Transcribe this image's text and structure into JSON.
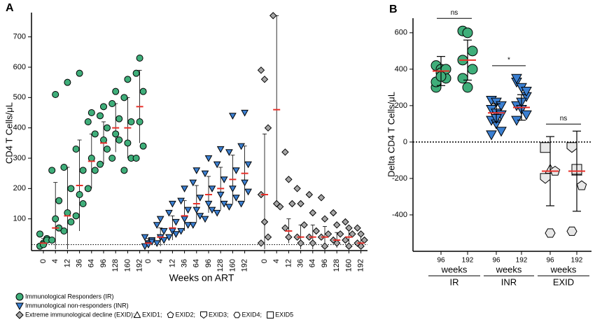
{
  "chart_data": [
    {
      "type": "strip",
      "panel_label": "A",
      "ylabel": "CD4 T Cells/μL",
      "xlabel": "Weeks on ART",
      "ylim": [
        0,
        780
      ],
      "yticks": [
        100,
        200,
        300,
        400,
        500,
        600,
        700
      ],
      "reference_line": 15,
      "groups": [
        {
          "name": "Immunological Responders (IR)",
          "color": "#3fae7a",
          "marker": "circle",
          "categories": [
            "0",
            "4",
            "12",
            "36",
            "64",
            "96",
            "128",
            "160",
            "192"
          ],
          "values": [
            [
              10,
              20,
              35,
              50,
              15,
              30
            ],
            [
              30,
              100,
              160,
              260,
              510,
              70
            ],
            [
              60,
              120,
              200,
              270,
              550,
              90
            ],
            [
              110,
              180,
              260,
              330,
              580,
              150
            ],
            [
              200,
              300,
              380,
              420,
              450,
              260
            ],
            [
              280,
              360,
              400,
              440,
              470,
              330
            ],
            [
              300,
              380,
              430,
              480,
              520,
              360
            ],
            [
              260,
              350,
              420,
              500,
              560,
              300
            ],
            [
              300,
              420,
              520,
              580,
              630,
              340
            ]
          ],
          "means": [
            20,
            70,
            110,
            210,
            290,
            350,
            400,
            400,
            470
          ],
          "sd": [
            15,
            150,
            160,
            150,
            90,
            70,
            80,
            100,
            120
          ]
        },
        {
          "name": "Immunological non-responders (INR)",
          "color": "#3b7fd1",
          "marker": "triangle-down",
          "categories": [
            "0",
            "4",
            "12",
            "36",
            "64",
            "96",
            "128",
            "160",
            "192"
          ],
          "values": [
            [
              10,
              20,
              30,
              40,
              15,
              25
            ],
            [
              20,
              40,
              60,
              80,
              100,
              30
            ],
            [
              40,
              60,
              90,
              120,
              150,
              50
            ],
            [
              60,
              100,
              130,
              160,
              200,
              80
            ],
            [
              80,
              130,
              170,
              220,
              260,
              110
            ],
            [
              100,
              150,
              200,
              250,
              300,
              130
            ],
            [
              120,
              180,
              230,
              280,
              330,
              150
            ],
            [
              140,
              200,
              260,
              320,
              440,
              170
            ],
            [
              150,
              220,
              280,
              340,
              450,
              190
            ]
          ],
          "means": [
            20,
            40,
            70,
            110,
            150,
            180,
            200,
            230,
            250
          ],
          "sd": [
            15,
            30,
            40,
            50,
            60,
            60,
            70,
            80,
            90
          ]
        },
        {
          "name": "Extreme immunological decline (EXID):",
          "color": "#a6a6a6",
          "marker": "diamond",
          "categories": [
            "0",
            "4",
            "12",
            "36",
            "64",
            "96",
            "128",
            "160",
            "192"
          ],
          "values": [
            [
              590,
              560,
              400,
              180,
              90,
              40,
              20
            ],
            [
              770,
              150,
              140
            ],
            [
              320,
              230,
              150,
              70,
              40
            ],
            [
              200,
              150,
              80,
              40,
              20
            ],
            [
              180,
              120,
              60,
              40,
              20
            ],
            [
              170,
              100,
              50,
              40,
              10
            ],
            [
              120,
              80,
              50,
              30,
              20
            ],
            [
              90,
              70,
              50,
              30,
              10
            ],
            [
              70,
              50,
              30,
              20,
              10
            ]
          ],
          "means": [
            180,
            460,
            60,
            40,
            40,
            40,
            30,
            40,
            20
          ],
          "sd": [
            200,
            310,
            40,
            40,
            40,
            35,
            25,
            30,
            25
          ]
        }
      ],
      "legend_sub": [
        {
          "label": "EXID1;",
          "marker": "triangle"
        },
        {
          "label": "EXID2;",
          "marker": "pentagon"
        },
        {
          "label": "EXID3;",
          "marker": "shield"
        },
        {
          "label": "EXID4;",
          "marker": "hexagon"
        },
        {
          "label": "EXID5",
          "marker": "square"
        }
      ]
    },
    {
      "type": "dot",
      "panel_label": "B",
      "ylabel": "Delta CD4 T Cells/μL",
      "ylim": [
        -600,
        680
      ],
      "yticks": [
        -400,
        -200,
        0,
        200,
        400,
        600
      ],
      "week_word": "weeks",
      "groups": [
        {
          "name": "IR",
          "color": "#3fae7a",
          "marker": "circle",
          "categories": [
            "96",
            "192"
          ],
          "significance": "ns",
          "values": [
            [
              420,
              400,
              350,
              300,
              380,
              400,
              330,
              360
            ],
            [
              610,
              600,
              500,
              350,
              300,
              400,
              450
            ]
          ],
          "means": [
            390,
            450
          ],
          "sd": [
            80,
            110
          ]
        },
        {
          "name": "INR",
          "color": "#3b7fd1",
          "marker": "triangle-down",
          "categories": [
            "96",
            "192"
          ],
          "significance": "*",
          "values": [
            [
              230,
              220,
              200,
              180,
              160,
              150,
              120,
              100,
              60,
              40,
              130
            ],
            [
              330,
              300,
              250,
              200,
              180,
              150,
              120,
              220,
              280,
              350
            ]
          ],
          "means": [
            160,
            190
          ],
          "sd": [
            50,
            70
          ]
        },
        {
          "name": "EXID",
          "color": "#e8e8e8",
          "marker": "square",
          "categories": [
            "96",
            "192"
          ],
          "significance": "ns",
          "point_markers": [
            [
              "square",
              "triangle",
              "pentagon",
              "shield",
              "hexagon"
            ],
            [
              "shield",
              "triangle",
              "pentagon",
              "hexagon",
              "square"
            ]
          ],
          "values": [
            [
              -30,
              -150,
              -160,
              -200,
              -500
            ],
            [
              -30,
              -160,
              -240,
              -490,
              -150
            ]
          ],
          "means": [
            -160,
            -160
          ],
          "sd": [
            190,
            220
          ]
        }
      ]
    }
  ]
}
